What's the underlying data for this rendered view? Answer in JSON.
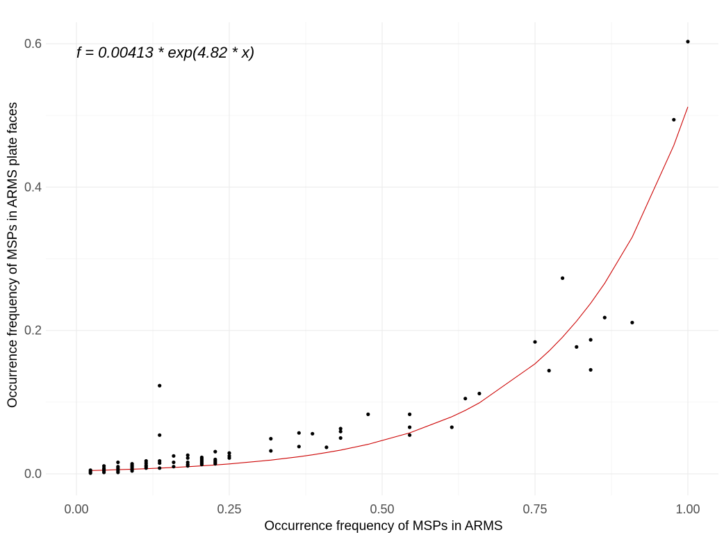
{
  "chart_data": {
    "type": "scatter",
    "title": "",
    "xlabel": "Occurrence frequency of MSPs in ARMS",
    "ylabel": "Occurrence frequency of MSPs in ARMS plate faces",
    "annotation": "f = 0.00413 * exp(4.82 * x)",
    "xlim": [
      -0.05,
      1.05
    ],
    "ylim": [
      -0.03,
      0.63
    ],
    "x_ticks": [
      0,
      0.25,
      0.5,
      0.75,
      1
    ],
    "x_tick_labels": [
      "0.00",
      "0.25",
      "0.50",
      "0.75",
      "1.00"
    ],
    "y_ticks": [
      0,
      0.2,
      0.4,
      0.6
    ],
    "y_tick_labels": [
      "0.0",
      "0.2",
      "0.4",
      "0.6"
    ],
    "grid": true,
    "legend": "none",
    "point_color": "#000000",
    "fit_color": "#cc0000",
    "points": [
      [
        0.023,
        0.001
      ],
      [
        0.023,
        0.003
      ],
      [
        0.023,
        0.005
      ],
      [
        0.045,
        0.002
      ],
      [
        0.045,
        0.004
      ],
      [
        0.045,
        0.006
      ],
      [
        0.045,
        0.008
      ],
      [
        0.045,
        0.011
      ],
      [
        0.068,
        0.002
      ],
      [
        0.068,
        0.004
      ],
      [
        0.068,
        0.006
      ],
      [
        0.068,
        0.008
      ],
      [
        0.068,
        0.01
      ],
      [
        0.068,
        0.016
      ],
      [
        0.091,
        0.004
      ],
      [
        0.091,
        0.006
      ],
      [
        0.091,
        0.008
      ],
      [
        0.091,
        0.01
      ],
      [
        0.091,
        0.012
      ],
      [
        0.091,
        0.014
      ],
      [
        0.114,
        0.008
      ],
      [
        0.114,
        0.01
      ],
      [
        0.114,
        0.012
      ],
      [
        0.114,
        0.015
      ],
      [
        0.114,
        0.018
      ],
      [
        0.136,
        0.008
      ],
      [
        0.136,
        0.015
      ],
      [
        0.136,
        0.018
      ],
      [
        0.136,
        0.054
      ],
      [
        0.136,
        0.123
      ],
      [
        0.159,
        0.01
      ],
      [
        0.159,
        0.016
      ],
      [
        0.159,
        0.025
      ],
      [
        0.182,
        0.011
      ],
      [
        0.182,
        0.013
      ],
      [
        0.182,
        0.016
      ],
      [
        0.182,
        0.022
      ],
      [
        0.182,
        0.026
      ],
      [
        0.205,
        0.013
      ],
      [
        0.205,
        0.015
      ],
      [
        0.205,
        0.017
      ],
      [
        0.205,
        0.019
      ],
      [
        0.205,
        0.021
      ],
      [
        0.205,
        0.023
      ],
      [
        0.227,
        0.014
      ],
      [
        0.227,
        0.016
      ],
      [
        0.227,
        0.018
      ],
      [
        0.227,
        0.02
      ],
      [
        0.227,
        0.031
      ],
      [
        0.25,
        0.022
      ],
      [
        0.25,
        0.025
      ],
      [
        0.25,
        0.029
      ],
      [
        0.318,
        0.032
      ],
      [
        0.318,
        0.049
      ],
      [
        0.364,
        0.038
      ],
      [
        0.364,
        0.057
      ],
      [
        0.386,
        0.056
      ],
      [
        0.409,
        0.037
      ],
      [
        0.432,
        0.05
      ],
      [
        0.432,
        0.059
      ],
      [
        0.432,
        0.063
      ],
      [
        0.477,
        0.083
      ],
      [
        0.545,
        0.054
      ],
      [
        0.545,
        0.065
      ],
      [
        0.545,
        0.083
      ],
      [
        0.614,
        0.065
      ],
      [
        0.636,
        0.105
      ],
      [
        0.659,
        0.112
      ],
      [
        0.75,
        0.184
      ],
      [
        0.773,
        0.144
      ],
      [
        0.795,
        0.273
      ],
      [
        0.818,
        0.177
      ],
      [
        0.841,
        0.145
      ],
      [
        0.841,
        0.187
      ],
      [
        0.864,
        0.218
      ],
      [
        0.909,
        0.211
      ],
      [
        0.977,
        0.494
      ],
      [
        1.0,
        0.603
      ]
    ],
    "fit_curve": {
      "a": 0.00413,
      "b": 4.82,
      "x": [
        0.023,
        0.045,
        0.068,
        0.091,
        0.114,
        0.136,
        0.159,
        0.182,
        0.205,
        0.227,
        0.25,
        0.318,
        0.364,
        0.386,
        0.409,
        0.432,
        0.477,
        0.545,
        0.614,
        0.636,
        0.659,
        0.75,
        0.773,
        0.795,
        0.818,
        0.841,
        0.864,
        0.909,
        0.977,
        1.0
      ]
    }
  }
}
